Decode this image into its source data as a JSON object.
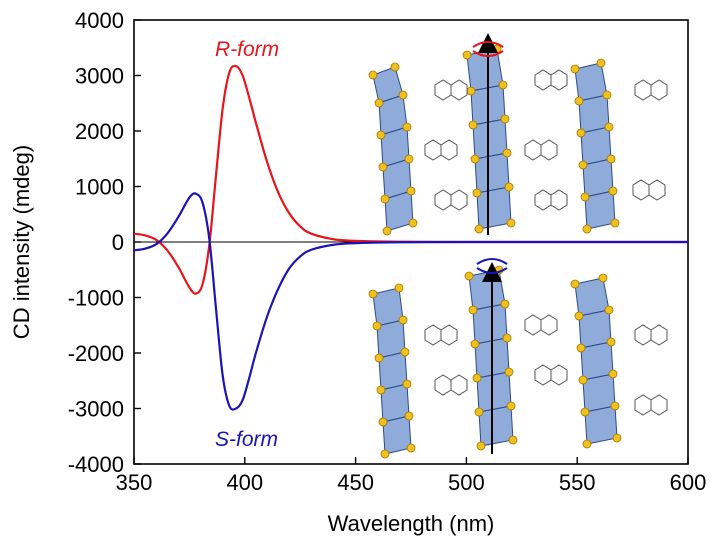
{
  "chart_data": {
    "type": "line",
    "xlabel": "Wavelength (nm)",
    "ylabel": "CD intensity (mdeg)",
    "xlim": [
      350,
      600
    ],
    "ylim": [
      -4000,
      4000
    ],
    "x_ticks": [
      350,
      400,
      450,
      500,
      550,
      600
    ],
    "y_ticks": [
      -4000,
      -3000,
      -2000,
      -1000,
      0,
      1000,
      2000,
      3000,
      4000
    ],
    "zero_line": true,
    "grid": false,
    "series": [
      {
        "name": "R-form",
        "color": "#e8141c",
        "x": [
          350,
          355,
          360,
          365,
          370,
          375,
          378,
          381,
          384,
          387,
          390,
          393,
          396,
          399,
          402,
          405,
          410,
          415,
          420,
          425,
          430,
          440,
          450,
          460,
          470,
          500,
          550,
          600
        ],
        "y": [
          150,
          120,
          40,
          -150,
          -450,
          -820,
          -930,
          -750,
          -50,
          1200,
          2400,
          3050,
          3170,
          3000,
          2600,
          2150,
          1450,
          900,
          520,
          280,
          150,
          50,
          20,
          10,
          5,
          0,
          0,
          0
        ]
      },
      {
        "name": "S-form",
        "color": "#1a14b4",
        "x": [
          350,
          355,
          360,
          365,
          370,
          375,
          378,
          381,
          384,
          387,
          390,
          393,
          396,
          399,
          402,
          405,
          410,
          415,
          420,
          425,
          430,
          440,
          450,
          460,
          470,
          500,
          550,
          600
        ],
        "y": [
          -150,
          -120,
          -40,
          150,
          450,
          800,
          870,
          700,
          50,
          -1200,
          -2400,
          -2950,
          -3000,
          -2850,
          -2450,
          -2000,
          -1350,
          -850,
          -480,
          -260,
          -140,
          -50,
          -20,
          -10,
          -5,
          0,
          0,
          0
        ]
      }
    ],
    "annotations": [
      {
        "text": "R-form",
        "color": "#e8141c"
      },
      {
        "text": "S-form",
        "color": "#1a14b4"
      }
    ]
  }
}
